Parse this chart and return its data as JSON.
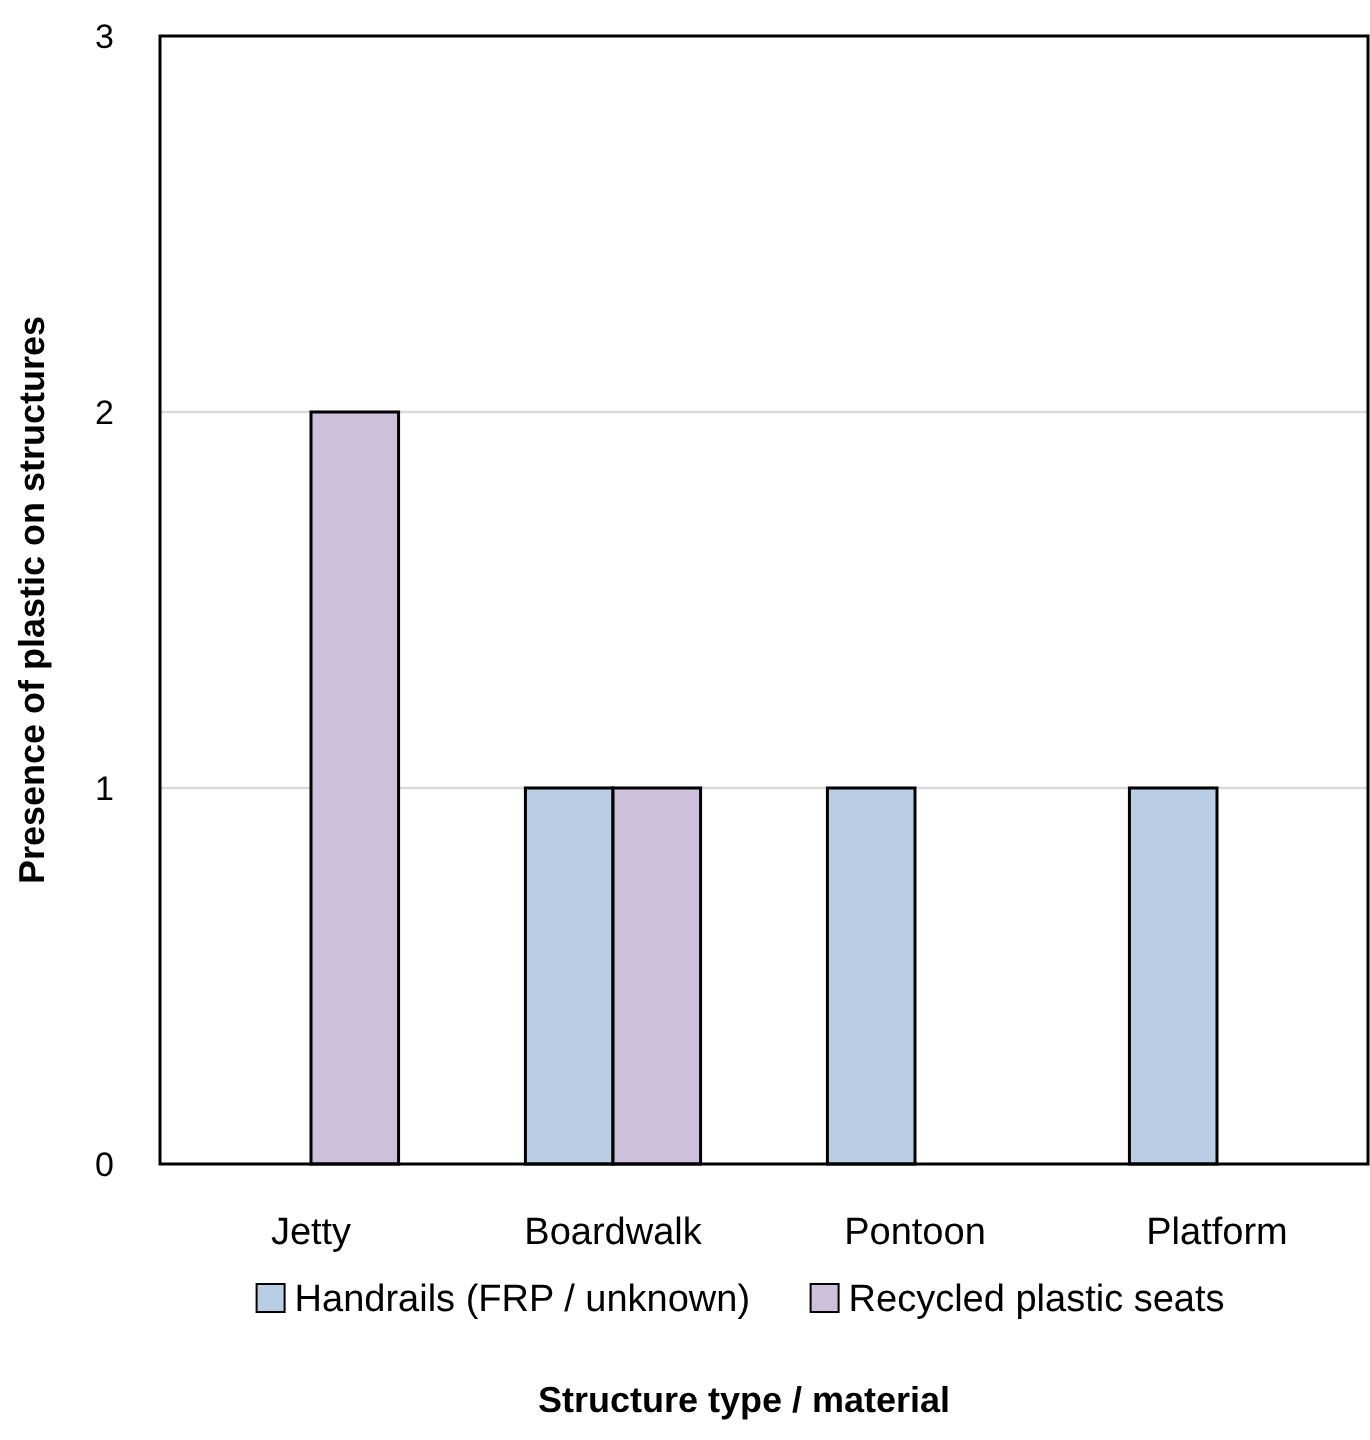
{
  "chart_data": {
    "type": "bar",
    "xlabel": "Structure type / material",
    "ylabel": "Presence of plastic on structures",
    "categories": [
      "Jetty",
      "Boardwalk",
      "Pontoon",
      "Platform"
    ],
    "series": [
      {
        "name": "Handrails (FRP / unknown)",
        "color": "#b9cde4",
        "values": [
          0,
          1,
          1,
          1
        ]
      },
      {
        "name": "Recycled plastic seats",
        "color": "#ccc0da",
        "values": [
          2,
          1,
          0,
          0
        ]
      }
    ],
    "ylim": [
      0,
      3
    ],
    "yticks": [
      0,
      1,
      2,
      3
    ],
    "grid": "y",
    "legend": "bottom"
  }
}
